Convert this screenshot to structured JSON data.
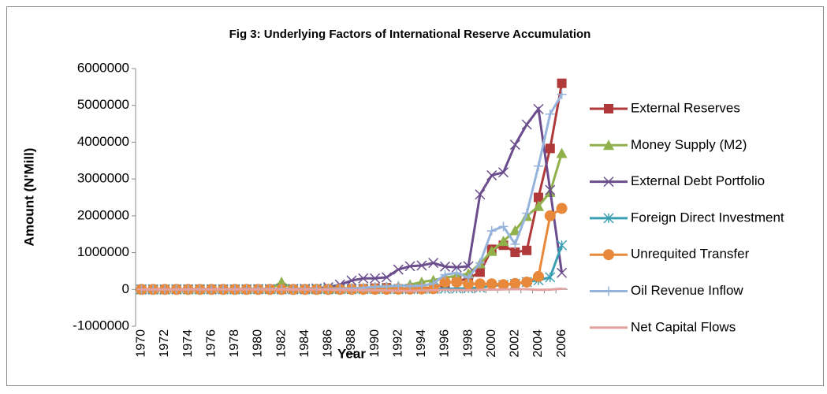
{
  "chart_data": {
    "type": "line",
    "title": "Fig 3: Underlying Factors of International Reserve Accumulation",
    "x_label": "Year",
    "y_label": "Amount (N'Mill)",
    "categories": [
      "1970",
      null,
      "1972",
      null,
      "1974",
      null,
      "1976",
      null,
      "1978",
      null,
      "1980",
      null,
      "1982",
      null,
      "1984",
      null,
      "1986",
      null,
      "1988",
      null,
      "1990",
      null,
      "1992",
      null,
      "1994",
      null,
      "1996",
      null,
      "1998",
      null,
      "2000",
      null,
      "2002",
      null,
      "2004",
      null,
      "2006"
    ],
    "ylim": [
      -1000000,
      6000000
    ],
    "yticks": [
      -1000000,
      0,
      1000000,
      2000000,
      3000000,
      4000000,
      5000000,
      6000000
    ],
    "grid": false,
    "legend": "right",
    "series": [
      {
        "name": "External Reserves",
        "color": "#b03a3a",
        "marker": "square",
        "values": [
          150,
          200,
          300,
          500,
          3500,
          5000,
          4000,
          3000,
          2000,
          3000,
          5500,
          4000,
          2000,
          1000,
          1000,
          1000,
          4000,
          7000,
          10000,
          20000,
          35000,
          44000,
          14000,
          21000,
          30000,
          40000,
          160000,
          230000,
          290000,
          470000,
          1090000,
          1200000,
          1010000,
          1060000,
          2500000,
          3830000,
          5600000
        ]
      },
      {
        "name": "Money Supply (M2)",
        "color": "#8fb04a",
        "marker": "triangle",
        "values": [
          600,
          800,
          1000,
          1300,
          2500,
          4000,
          5500,
          7000,
          8000,
          9000,
          14000,
          15000,
          200000,
          17000,
          18000,
          20000,
          23000,
          27000,
          33000,
          40000,
          50000,
          60000,
          80000,
          130000,
          200000,
          250000,
          320000,
          370000,
          430000,
          700000,
          1040000,
          1310000,
          1600000,
          1990000,
          2260000,
          2640000,
          3700000
        ]
      },
      {
        "name": "External Debt Portfolio",
        "color": "#6b4c8c",
        "marker": "x",
        "values": [
          1000,
          1200,
          1300,
          1500,
          1700,
          1800,
          1900,
          2500,
          3000,
          5000,
          8000,
          10000,
          13000,
          17000,
          18000,
          27000,
          60000,
          130000,
          240000,
          300000,
          300000,
          330000,
          540000,
          630000,
          650000,
          720000,
          620000,
          600000,
          630000,
          2580000,
          3100000,
          3180000,
          3930000,
          4480000,
          4900000,
          2700000,
          450000
        ]
      },
      {
        "name": "Foreign Direct Investment",
        "color": "#3a9fb2",
        "marker": "star",
        "values": [
          300,
          400,
          500,
          600,
          700,
          800,
          900,
          1000,
          1200,
          1300,
          1500,
          1700,
          1800,
          2000,
          2200,
          2400,
          2600,
          3000,
          4000,
          5000,
          6000,
          7000,
          8000,
          10000,
          12000,
          15000,
          20000,
          25000,
          30000,
          50000,
          100000,
          120000,
          150000,
          200000,
          250000,
          330000,
          1200000
        ]
      },
      {
        "name": "Unrequited Transfer",
        "color": "#e8883a",
        "marker": "circle",
        "values": [
          100,
          100,
          100,
          200,
          200,
          300,
          300,
          300,
          400,
          400,
          500,
          500,
          600,
          700,
          800,
          900,
          1000,
          2000,
          3000,
          4000,
          5000,
          6000,
          8000,
          10000,
          12000,
          20000,
          200000,
          200000,
          150000,
          150000,
          150000,
          130000,
          160000,
          200000,
          350000,
          2000000,
          2200000
        ]
      },
      {
        "name": "Oil Revenue Inflow",
        "color": "#96b3dc",
        "marker": "plus",
        "values": [
          200,
          300,
          500,
          1000,
          4000,
          5000,
          6000,
          7000,
          6000,
          8000,
          12000,
          9000,
          8000,
          7000,
          8000,
          10000,
          8000,
          20000,
          20000,
          40000,
          70000,
          80000,
          100000,
          90000,
          100000,
          160000,
          400000,
          450000,
          320000,
          720000,
          1590000,
          1710000,
          1230000,
          2070000,
          3350000,
          4760000,
          5300000
        ]
      },
      {
        "name": "Net Capital Flows",
        "color": "#e3a19f",
        "marker": "dash",
        "values": [
          100,
          100,
          100,
          200,
          300,
          300,
          200,
          -500,
          -1000,
          500,
          1000,
          -2000,
          -3000,
          -2000,
          -1000,
          -1500,
          -5000,
          -10000,
          -15000,
          -20000,
          -25000,
          -30000,
          -35000,
          -40000,
          -30000,
          -20000,
          -10000,
          -15000,
          -20000,
          -10000,
          -5000,
          0,
          10000,
          5000,
          -10000,
          -5000,
          20000
        ]
      }
    ]
  }
}
